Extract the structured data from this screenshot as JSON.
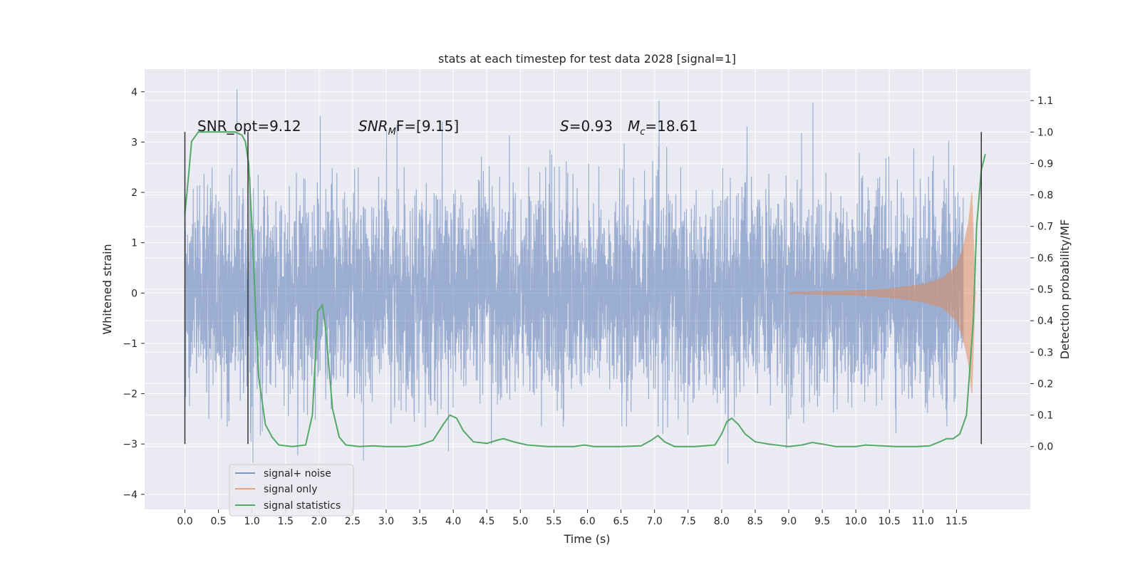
{
  "chart_data": {
    "type": "line",
    "title": "stats at each timestep for test data 2028 [signal=1]",
    "xlabel": "Time (s)",
    "ylabel": "Whitened strain",
    "ylabel_right": "Detection probability/MF",
    "xlim": [
      -0.6,
      12.6
    ],
    "ylim": [
      -4.3,
      4.45
    ],
    "ylim_right": [
      -0.2,
      1.2
    ],
    "x_ticks": [
      0.0,
      0.5,
      1.0,
      1.5,
      2.0,
      2.5,
      3.0,
      3.5,
      4.0,
      4.5,
      5.0,
      5.5,
      6.0,
      6.5,
      7.0,
      7.5,
      8.0,
      8.5,
      9.0,
      9.5,
      10.0,
      10.5,
      11.0,
      11.5
    ],
    "x_tick_labels": [
      "0.0",
      "0.5",
      "1.0",
      "1.5",
      "2.0",
      "2.5",
      "3.0",
      "3.5",
      "4.0",
      "4.5",
      "5.0",
      "5.5",
      "6.0",
      "6.5",
      "7.0",
      "7.5",
      "8.0",
      "8.5",
      "9.0",
      "9.5",
      "10.0",
      "10.5",
      "11.0",
      "11.5"
    ],
    "y_ticks": [
      -4,
      -3,
      -2,
      -1,
      0,
      1,
      2,
      3,
      4
    ],
    "y_tick_labels": [
      "−4",
      "−3",
      "−2",
      "−1",
      "0",
      "1",
      "2",
      "3",
      "4"
    ],
    "y_ticks_right": [
      0.0,
      0.1,
      0.2,
      0.3,
      0.4,
      0.5,
      0.6,
      0.7,
      0.8,
      0.9,
      1.0,
      1.1
    ],
    "y_tick_labels_right": [
      "0.0",
      "0.1",
      "0.2",
      "0.3",
      "0.4",
      "0.5",
      "0.6",
      "0.7",
      "0.8",
      "0.9",
      "1.0",
      "1.1"
    ],
    "grid": true,
    "legend_position": "lower-left",
    "annotations": {
      "snr_opt": "SNR_opt=9.12",
      "snr_mf_base": "SNR",
      "snr_mf_sub": "M",
      "snr_mf_rest": "F=[9.15]",
      "s_symbol": "S",
      "s_value": "=0.93",
      "mc_symbol": "M",
      "mc_sub": "c",
      "mc_value": "=18.61"
    },
    "vlines": [
      0.0,
      0.94,
      11.87
    ],
    "vline_range": [
      -3.0,
      3.2
    ],
    "series": [
      {
        "name": "signal+ noise",
        "color": "#4c72b0",
        "alpha": 0.5,
        "x_range": [
          0.0,
          11.6
        ],
        "noise_std": 1.0,
        "note_sampling": "dense noisy trace"
      },
      {
        "name": "signal only",
        "color": "#dd8452",
        "alpha": 0.5,
        "x_range": [
          9.0,
          11.8
        ],
        "envelope_points": [
          [
            9.0,
            0.02
          ],
          [
            10.0,
            0.05
          ],
          [
            10.5,
            0.09
          ],
          [
            11.0,
            0.18
          ],
          [
            11.3,
            0.3
          ],
          [
            11.5,
            0.55
          ],
          [
            11.6,
            0.9
          ],
          [
            11.68,
            1.4
          ],
          [
            11.73,
            2.0
          ],
          [
            11.78,
            0.0
          ]
        ]
      },
      {
        "name": "signal statistics",
        "color": "#55a868",
        "axis": "right",
        "points": [
          [
            0.0,
            0.74
          ],
          [
            0.05,
            0.85
          ],
          [
            0.1,
            0.97
          ],
          [
            0.2,
            1.0
          ],
          [
            0.4,
            1.0
          ],
          [
            0.6,
            1.0
          ],
          [
            0.75,
            1.0
          ],
          [
            0.85,
            0.99
          ],
          [
            0.9,
            0.97
          ],
          [
            0.95,
            0.9
          ],
          [
            1.0,
            0.7
          ],
          [
            1.05,
            0.45
          ],
          [
            1.1,
            0.22
          ],
          [
            1.2,
            0.07
          ],
          [
            1.3,
            0.03
          ],
          [
            1.4,
            0.005
          ],
          [
            1.6,
            0.0
          ],
          [
            1.8,
            0.005
          ],
          [
            1.9,
            0.1
          ],
          [
            1.98,
            0.43
          ],
          [
            2.05,
            0.45
          ],
          [
            2.1,
            0.37
          ],
          [
            2.2,
            0.12
          ],
          [
            2.3,
            0.03
          ],
          [
            2.4,
            0.005
          ],
          [
            2.6,
            0.0
          ],
          [
            2.8,
            0.002
          ],
          [
            3.0,
            0.0
          ],
          [
            3.3,
            0.0
          ],
          [
            3.5,
            0.005
          ],
          [
            3.7,
            0.02
          ],
          [
            3.85,
            0.07
          ],
          [
            3.95,
            0.1
          ],
          [
            4.05,
            0.09
          ],
          [
            4.15,
            0.05
          ],
          [
            4.3,
            0.015
          ],
          [
            4.5,
            0.01
          ],
          [
            4.65,
            0.02
          ],
          [
            4.75,
            0.025
          ],
          [
            4.9,
            0.015
          ],
          [
            5.1,
            0.005
          ],
          [
            5.4,
            0.0
          ],
          [
            5.8,
            0.0
          ],
          [
            5.95,
            0.005
          ],
          [
            6.1,
            0.0
          ],
          [
            6.5,
            0.0
          ],
          [
            6.8,
            0.002
          ],
          [
            6.95,
            0.02
          ],
          [
            7.05,
            0.035
          ],
          [
            7.15,
            0.015
          ],
          [
            7.3,
            0.0
          ],
          [
            7.6,
            0.0
          ],
          [
            7.9,
            0.005
          ],
          [
            8.0,
            0.04
          ],
          [
            8.08,
            0.08
          ],
          [
            8.15,
            0.09
          ],
          [
            8.25,
            0.07
          ],
          [
            8.35,
            0.04
          ],
          [
            8.5,
            0.015
          ],
          [
            8.7,
            0.008
          ],
          [
            9.0,
            0.0
          ],
          [
            9.2,
            0.005
          ],
          [
            9.35,
            0.013
          ],
          [
            9.5,
            0.008
          ],
          [
            9.7,
            0.0
          ],
          [
            10.0,
            0.0
          ],
          [
            10.15,
            0.005
          ],
          [
            10.3,
            0.003
          ],
          [
            10.6,
            0.0
          ],
          [
            10.9,
            0.0
          ],
          [
            11.1,
            0.002
          ],
          [
            11.25,
            0.015
          ],
          [
            11.35,
            0.025
          ],
          [
            11.45,
            0.025
          ],
          [
            11.55,
            0.04
          ],
          [
            11.65,
            0.1
          ],
          [
            11.75,
            0.4
          ],
          [
            11.8,
            0.7
          ],
          [
            11.87,
            0.88
          ],
          [
            11.93,
            0.93
          ]
        ]
      }
    ]
  }
}
